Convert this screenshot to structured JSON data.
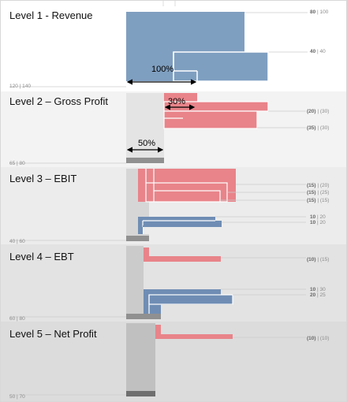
{
  "colors": {
    "band_bg": [
      "#ffffff",
      "#f3f3f3",
      "#ececec",
      "#e3e3e3",
      "#dcdcdc"
    ],
    "revenue": "#7f9fc0",
    "revenue_stroke": "#ffffff",
    "cost": "#e8848a",
    "profit": "#6f8db4",
    "base_fill": [
      "#e4e4e4",
      "#d6d6d6",
      "#cbcbcb",
      "#c0c0c0"
    ],
    "base_bar": "#909090",
    "guide": "#cccccc"
  },
  "chart_data": {
    "type": "bar",
    "levels": [
      {
        "label": "Level 1 - Revenue",
        "base_value": 120,
        "base_prior": 140,
        "bars": [
          {
            "value": 80,
            "prior": 100,
            "start": 0,
            "color": "revenue",
            "row": "top"
          },
          {
            "value": 40,
            "prior": 40,
            "start": 60,
            "color": "revenue",
            "row": "mid"
          }
        ],
        "annotation": {
          "text": "100%",
          "from": 0,
          "to": 90
        }
      },
      {
        "label": "Level 2 – Gross Profit",
        "base_value": 65,
        "base_prior": 80,
        "bars": [
          {
            "value": -20,
            "prior": -30,
            "color": "cost"
          },
          {
            "value": -35,
            "prior": -30,
            "color": "cost"
          }
        ],
        "annotation_top": {
          "text": "30%",
          "from": 50,
          "to": 80
        },
        "annotation": {
          "text": "50%",
          "from": 0,
          "to": 50
        }
      },
      {
        "label": "Level 3 – EBIT",
        "base_value": 40,
        "base_prior": 60,
        "bars": [
          {
            "value": -15,
            "prior": -20,
            "color": "cost"
          },
          {
            "value": -15,
            "prior": -25,
            "color": "cost"
          },
          {
            "value": -15,
            "prior": -15,
            "color": "cost"
          },
          {
            "value": 10,
            "prior": 20,
            "color": "profit"
          },
          {
            "value": 10,
            "prior": 20,
            "color": "profit"
          }
        ]
      },
      {
        "label": "Level 4 – EBT",
        "base_value": 60,
        "base_prior": 80,
        "bars": [
          {
            "value": -10,
            "prior": -15,
            "color": "cost"
          },
          {
            "value": 10,
            "prior": 30,
            "color": "profit"
          },
          {
            "value": 20,
            "prior": 25,
            "color": "profit"
          }
        ]
      },
      {
        "label": "Level 5 – Net Profit",
        "base_value": 50,
        "base_prior": 70,
        "bars": [
          {
            "value": -10,
            "prior": -10,
            "color": "cost"
          }
        ]
      }
    ]
  },
  "labels": {
    "level_1": "Level 1 - Revenue",
    "level_2": "Level 2 – Gross Profit",
    "level_3": "Level 3 – EBIT",
    "level_4": "Level 4 – EBT",
    "level_5": "Level 5 – Net Profit",
    "base_1": "120 | 140",
    "base_2": "65 | 80",
    "base_3": "40 | 60",
    "base_4": "60 | 80",
    "base_5": "50 | 70",
    "v1a": "80 | 100",
    "v1b": "40 | 40",
    "v2a": "(20) | (30)",
    "v2b": "(35) | (30)",
    "v3a": "(15) | (20)",
    "v3b": "(15) | (25)",
    "v3c": "(15) | (15)",
    "v3d": "10 | 20",
    "v3e": "10 | 20",
    "v4a": "(10) | (15)",
    "v4b": "10 | 30",
    "v4c": "20 | 25",
    "v5a": "(10) | (10)",
    "pct_100": "100%",
    "pct_30": "30%",
    "pct_50": "50%"
  }
}
